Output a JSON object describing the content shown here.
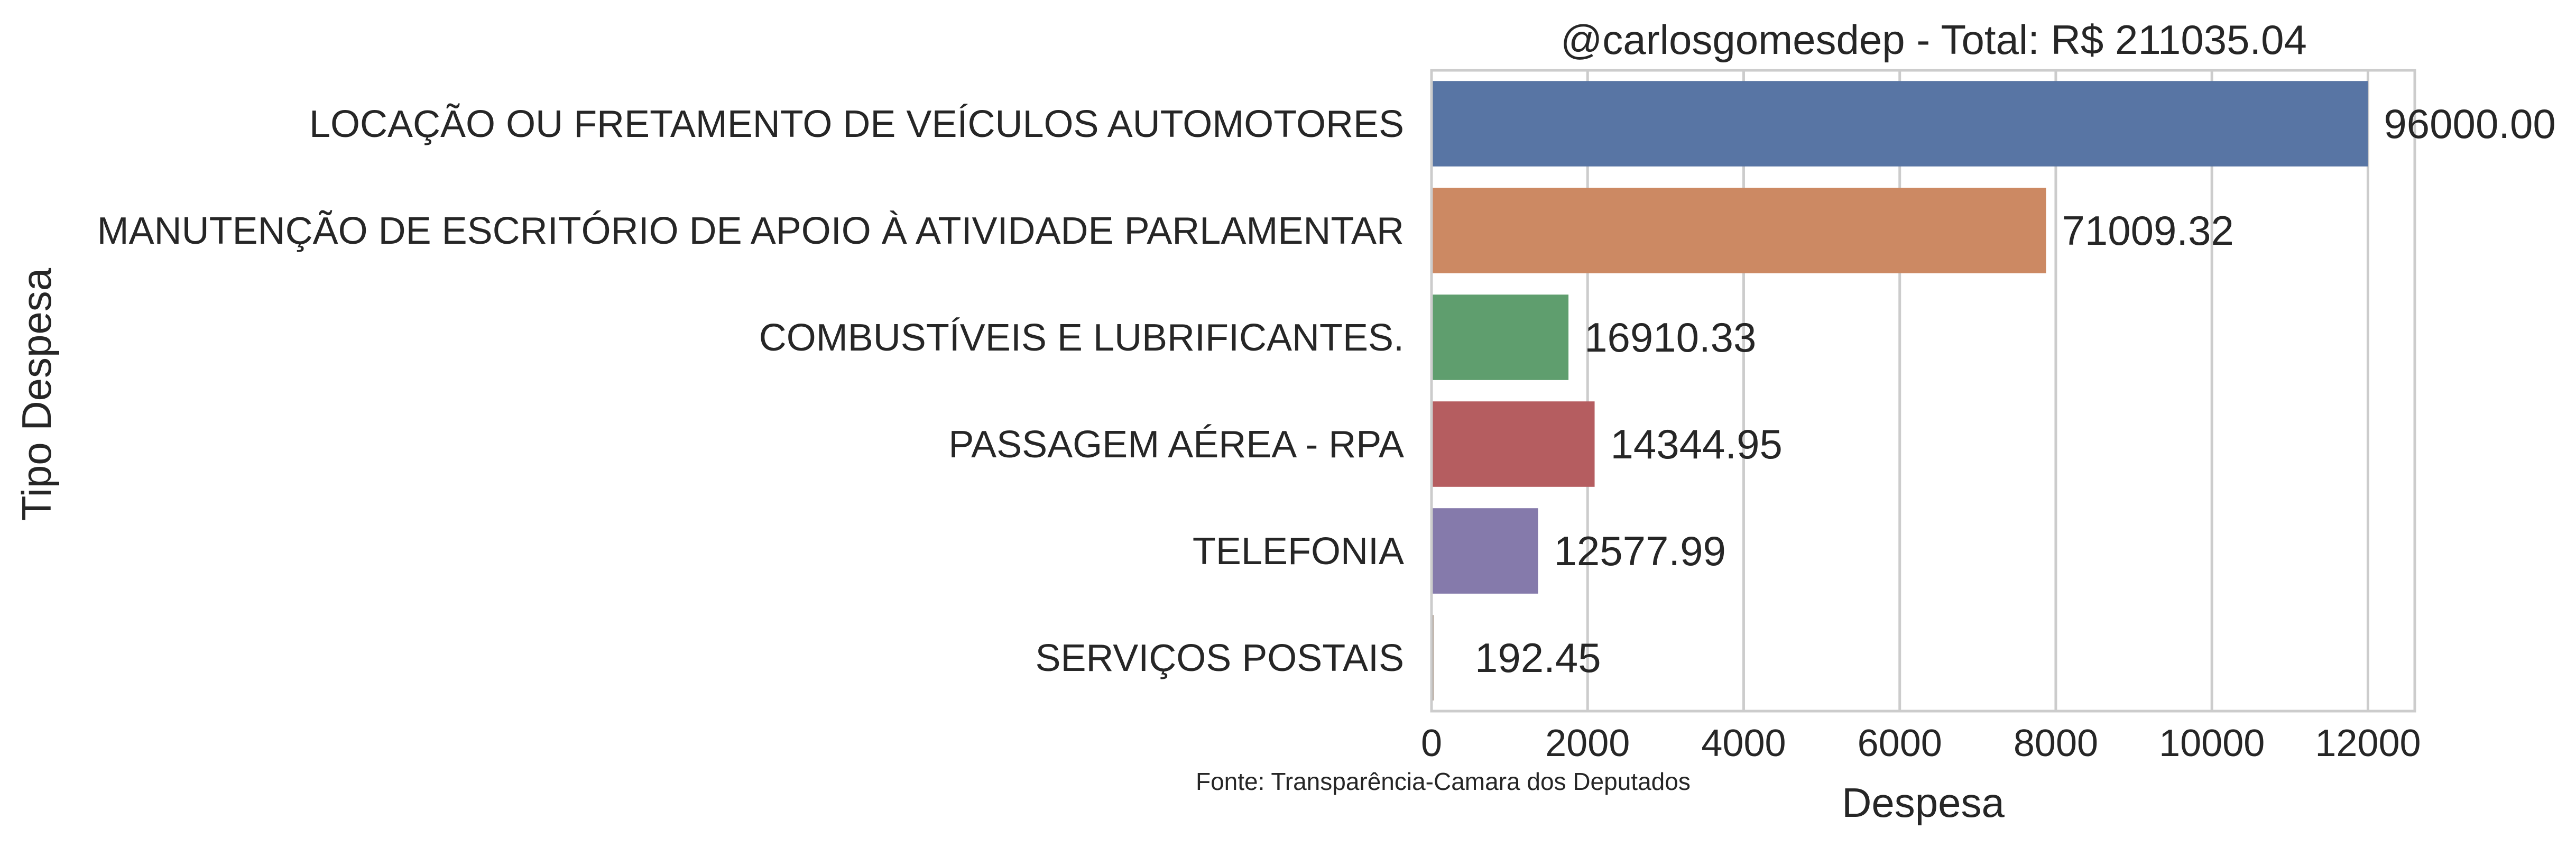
{
  "chart_data": {
    "type": "bar",
    "orientation": "horizontal",
    "title": "@carlosgomesdep - Total: R$ 211035.04",
    "xlabel": "Despesa",
    "ylabel": "Tipo Despesa",
    "source_note": "Fonte: Transparência-Camara dos Deputados",
    "xlim": [
      0,
      12600
    ],
    "xticks": [
      0,
      2000,
      4000,
      6000,
      8000,
      10000,
      12000
    ],
    "grid": "vertical",
    "categories": [
      "LOCAÇÃO OU FRETAMENTO DE VEÍCULOS AUTOMOTORES",
      "MANUTENÇÃO DE ESCRITÓRIO DE APOIO À ATIVIDADE PARLAMENTAR",
      "COMBUSTÍVEIS E LUBRIFICANTES.",
      "PASSAGEM AÉREA - RPA",
      "TELEFONIA",
      "SERVIÇOS POSTAIS"
    ],
    "values": [
      12000,
      7875,
      1755,
      2090,
      1365,
      25
    ],
    "data_labels": [
      "96000.00",
      "71009.32",
      "16910.33",
      "14344.95",
      "12577.99",
      "192.45"
    ],
    "colors": [
      "#5875a4",
      "#cc8963",
      "#5f9e6e",
      "#b55d60",
      "#857aab",
      "#8d7866"
    ]
  }
}
